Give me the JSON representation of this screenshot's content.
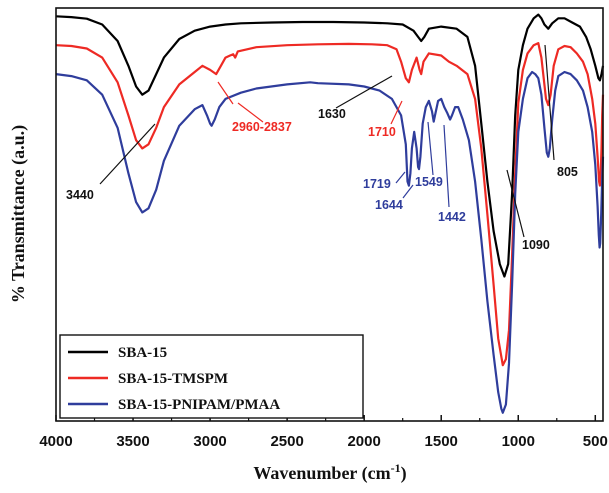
{
  "chart_data": {
    "type": "line",
    "xlabel": "Wavenumber (cm",
    "xlabel_sup": "-1",
    "xlabel_close": ")",
    "ylabel": "% Transmittance (a.u.)",
    "xlim": [
      4000,
      450
    ],
    "x_reversed": true,
    "ylim": [
      0,
      100
    ],
    "x_ticks": [
      4000,
      3500,
      3000,
      2500,
      2000,
      1500,
      1000,
      500
    ],
    "grid": false,
    "legend_position": "bottom-left",
    "series": [
      {
        "name": "SBA-15",
        "color": "#000000",
        "points": [
          [
            4000,
            98
          ],
          [
            3900,
            97.8
          ],
          [
            3800,
            97.4
          ],
          [
            3700,
            96
          ],
          [
            3600,
            92
          ],
          [
            3530,
            86
          ],
          [
            3480,
            81
          ],
          [
            3440,
            79
          ],
          [
            3400,
            80
          ],
          [
            3350,
            84
          ],
          [
            3300,
            88
          ],
          [
            3200,
            92.5
          ],
          [
            3100,
            94.5
          ],
          [
            3000,
            95.5
          ],
          [
            2900,
            96
          ],
          [
            2800,
            96.3
          ],
          [
            2600,
            96.5
          ],
          [
            2400,
            96.6
          ],
          [
            2200,
            96.6
          ],
          [
            2000,
            96.5
          ],
          [
            1850,
            96.3
          ],
          [
            1750,
            96
          ],
          [
            1680,
            94.5
          ],
          [
            1650,
            93
          ],
          [
            1630,
            92
          ],
          [
            1610,
            93
          ],
          [
            1580,
            95
          ],
          [
            1500,
            95.5
          ],
          [
            1400,
            95
          ],
          [
            1330,
            93
          ],
          [
            1280,
            86
          ],
          [
            1240,
            72
          ],
          [
            1200,
            58
          ],
          [
            1160,
            46
          ],
          [
            1120,
            38
          ],
          [
            1090,
            35
          ],
          [
            1065,
            38
          ],
          [
            1040,
            55
          ],
          [
            1020,
            74
          ],
          [
            1000,
            85
          ],
          [
            970,
            91
          ],
          [
            940,
            95
          ],
          [
            900,
            97.5
          ],
          [
            870,
            98.4
          ],
          [
            850,
            97.5
          ],
          [
            830,
            96
          ],
          [
            805,
            95
          ],
          [
            780,
            96.3
          ],
          [
            740,
            97.5
          ],
          [
            700,
            97.5
          ],
          [
            650,
            96.5
          ],
          [
            600,
            95.5
          ],
          [
            560,
            93
          ],
          [
            530,
            90
          ],
          [
            500,
            86
          ],
          [
            480,
            83
          ],
          [
            470,
            82.5
          ],
          [
            460,
            84
          ],
          [
            450,
            86
          ]
        ]
      },
      {
        "name": "SBA-15-TMSPM",
        "color": "#ee2a24",
        "points": [
          [
            4000,
            91
          ],
          [
            3900,
            90.8
          ],
          [
            3800,
            90.2
          ],
          [
            3700,
            88
          ],
          [
            3600,
            82
          ],
          [
            3530,
            74
          ],
          [
            3480,
            68
          ],
          [
            3440,
            66
          ],
          [
            3400,
            67
          ],
          [
            3350,
            71
          ],
          [
            3300,
            76
          ],
          [
            3200,
            81.5
          ],
          [
            3100,
            84.5
          ],
          [
            3050,
            86
          ],
          [
            3000,
            85
          ],
          [
            2960,
            84
          ],
          [
            2930,
            86
          ],
          [
            2900,
            88
          ],
          [
            2870,
            88.5
          ],
          [
            2850,
            88.8
          ],
          [
            2837,
            88
          ],
          [
            2820,
            89.5
          ],
          [
            2700,
            90.5
          ],
          [
            2500,
            91
          ],
          [
            2300,
            91.2
          ],
          [
            2100,
            91.3
          ],
          [
            1950,
            91.2
          ],
          [
            1850,
            91
          ],
          [
            1790,
            90
          ],
          [
            1760,
            87
          ],
          [
            1730,
            83
          ],
          [
            1710,
            82
          ],
          [
            1690,
            85
          ],
          [
            1660,
            88
          ],
          [
            1640,
            85
          ],
          [
            1630,
            84
          ],
          [
            1615,
            87
          ],
          [
            1580,
            89
          ],
          [
            1500,
            88.5
          ],
          [
            1450,
            87
          ],
          [
            1400,
            86
          ],
          [
            1330,
            84
          ],
          [
            1280,
            78
          ],
          [
            1240,
            66
          ],
          [
            1200,
            50
          ],
          [
            1160,
            33
          ],
          [
            1130,
            20
          ],
          [
            1100,
            13.5
          ],
          [
            1080,
            15
          ],
          [
            1060,
            22
          ],
          [
            1040,
            40
          ],
          [
            1020,
            60
          ],
          [
            1000,
            77
          ],
          [
            970,
            85
          ],
          [
            940,
            89
          ],
          [
            900,
            91
          ],
          [
            870,
            91.5
          ],
          [
            850,
            88
          ],
          [
            820,
            78
          ],
          [
            805,
            76.5
          ],
          [
            790,
            79
          ],
          [
            770,
            86
          ],
          [
            740,
            90
          ],
          [
            700,
            90.8
          ],
          [
            660,
            90.5
          ],
          [
            620,
            89
          ],
          [
            580,
            87
          ],
          [
            550,
            84
          ],
          [
            520,
            78
          ],
          [
            500,
            72
          ],
          [
            485,
            64
          ],
          [
            475,
            58
          ],
          [
            470,
            57
          ],
          [
            465,
            60
          ],
          [
            460,
            66
          ],
          [
            455,
            74
          ],
          [
            450,
            79
          ]
        ]
      },
      {
        "name": "SBA-15-PNIPAM/PMAA",
        "color": "#2f3d9c",
        "points": [
          [
            4000,
            84
          ],
          [
            3900,
            83.5
          ],
          [
            3800,
            82.5
          ],
          [
            3700,
            79
          ],
          [
            3600,
            71
          ],
          [
            3530,
            60
          ],
          [
            3480,
            53
          ],
          [
            3440,
            50.5
          ],
          [
            3400,
            51.5
          ],
          [
            3350,
            56
          ],
          [
            3300,
            63
          ],
          [
            3200,
            71.5
          ],
          [
            3100,
            75.5
          ],
          [
            3050,
            76.5
          ],
          [
            3020,
            74
          ],
          [
            3000,
            72
          ],
          [
            2990,
            71.5
          ],
          [
            2970,
            73
          ],
          [
            2940,
            76
          ],
          [
            2900,
            78
          ],
          [
            2800,
            79.5
          ],
          [
            2700,
            80.5
          ],
          [
            2500,
            81.5
          ],
          [
            2350,
            82
          ],
          [
            2300,
            81.8
          ],
          [
            2100,
            81.5
          ],
          [
            2000,
            81
          ],
          [
            1900,
            80
          ],
          [
            1820,
            78
          ],
          [
            1760,
            74
          ],
          [
            1730,
            67
          ],
          [
            1719,
            58
          ],
          [
            1710,
            57
          ],
          [
            1700,
            60
          ],
          [
            1690,
            66
          ],
          [
            1675,
            70
          ],
          [
            1660,
            66
          ],
          [
            1650,
            61.5
          ],
          [
            1644,
            61
          ],
          [
            1635,
            64
          ],
          [
            1620,
            72
          ],
          [
            1600,
            76
          ],
          [
            1580,
            77.5
          ],
          [
            1560,
            75
          ],
          [
            1549,
            72.5
          ],
          [
            1540,
            74
          ],
          [
            1520,
            77.5
          ],
          [
            1500,
            78
          ],
          [
            1480,
            76
          ],
          [
            1460,
            74.5
          ],
          [
            1442,
            73
          ],
          [
            1430,
            74
          ],
          [
            1410,
            76
          ],
          [
            1390,
            76
          ],
          [
            1360,
            73
          ],
          [
            1320,
            68
          ],
          [
            1280,
            58
          ],
          [
            1240,
            44
          ],
          [
            1200,
            29
          ],
          [
            1160,
            16
          ],
          [
            1130,
            7
          ],
          [
            1110,
            3
          ],
          [
            1100,
            2
          ],
          [
            1080,
            4
          ],
          [
            1060,
            14
          ],
          [
            1040,
            33
          ],
          [
            1020,
            55
          ],
          [
            1000,
            70
          ],
          [
            970,
            78
          ],
          [
            940,
            83
          ],
          [
            910,
            84.5
          ],
          [
            890,
            84
          ],
          [
            870,
            83
          ],
          [
            850,
            79
          ],
          [
            830,
            71
          ],
          [
            815,
            65
          ],
          [
            805,
            64
          ],
          [
            795,
            66
          ],
          [
            780,
            73
          ],
          [
            760,
            80
          ],
          [
            740,
            83.5
          ],
          [
            700,
            84.5
          ],
          [
            660,
            84
          ],
          [
            620,
            82.5
          ],
          [
            580,
            80
          ],
          [
            550,
            76
          ],
          [
            520,
            70
          ],
          [
            500,
            62
          ],
          [
            485,
            52
          ],
          [
            477,
            45
          ],
          [
            472,
            42
          ],
          [
            468,
            43
          ],
          [
            462,
            50
          ],
          [
            456,
            58
          ],
          [
            450,
            64
          ]
        ]
      }
    ],
    "annotations": [
      {
        "text": "3440",
        "color": "#111111"
      },
      {
        "text": "2960-2837",
        "color": "#ee2a24"
      },
      {
        "text": "1630",
        "color": "#111111"
      },
      {
        "text": "1710",
        "color": "#ee2a24"
      },
      {
        "text": "1719",
        "color": "#2f3d9c"
      },
      {
        "text": "1644",
        "color": "#2f3d9c"
      },
      {
        "text": "1549",
        "color": "#2f3d9c"
      },
      {
        "text": "1442",
        "color": "#2f3d9c"
      },
      {
        "text": "1090",
        "color": "#111111"
      },
      {
        "text": "805",
        "color": "#111111"
      }
    ]
  }
}
